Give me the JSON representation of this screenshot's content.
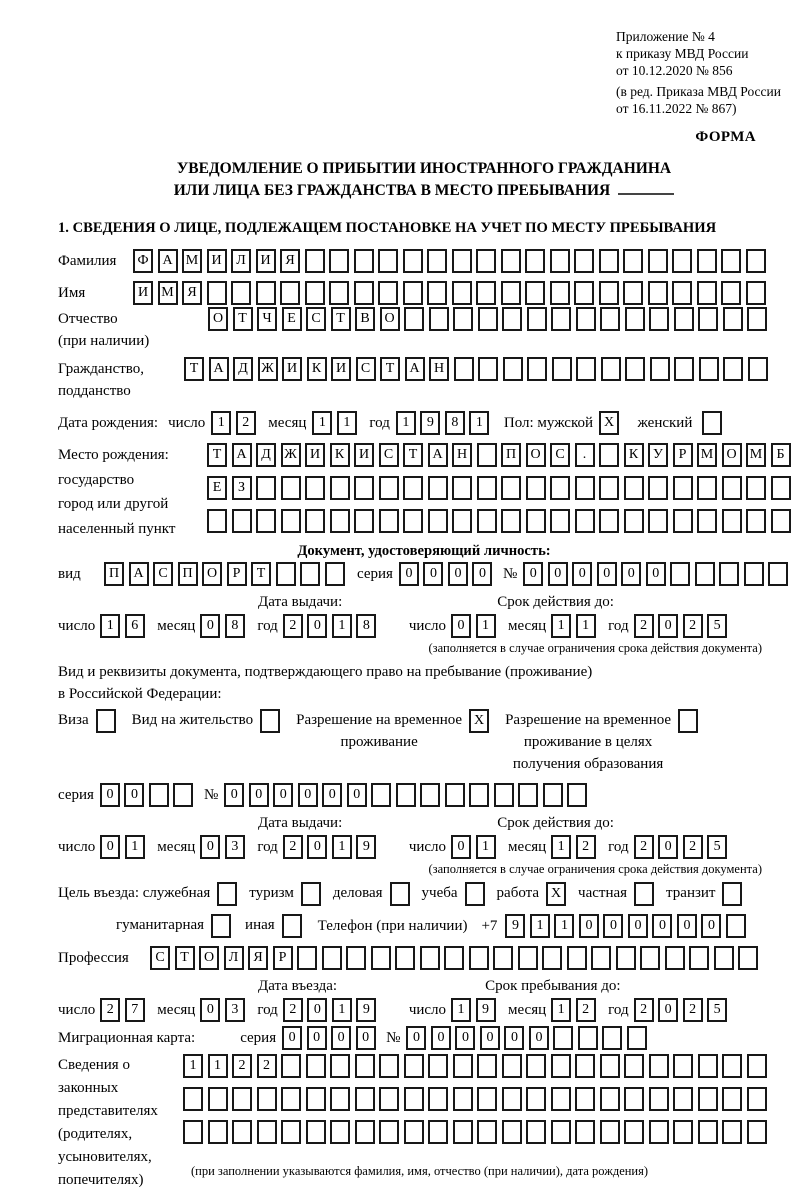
{
  "header": {
    "appendix_lines": [
      "Приложение № 4",
      "к приказу МВД России",
      "от 10.12.2020 № 856"
    ],
    "edition_lines": [
      "(в ред. Приказа МВД России",
      "от 16.11.2022 № 867)"
    ],
    "forma": "ФОРМА"
  },
  "title": {
    "line1": "УВЕДОМЛЕНИЕ О ПРИБЫТИИ ИНОСТРАННОГО ГРАЖДАНИНА",
    "line2": "ИЛИ ЛИЦА БЕЗ ГРАЖДАНСТВА В МЕСТО ПРЕБЫВАНИЯ"
  },
  "section1_heading": "1. СВЕДЕНИЯ О ЛИЦЕ, ПОДЛЕЖАЩЕМ ПОСТАНОВКЕ НА УЧЕТ ПО МЕСТУ ПРЕБЫВАНИЯ",
  "date_labels": {
    "day": "число",
    "month": "месяц",
    "year": "год"
  },
  "person": {
    "surname": {
      "label": "Фамилия",
      "boxes": {
        "chars": "ФАМИЛИЯ",
        "count": 26
      }
    },
    "given_name": {
      "label": "Имя",
      "boxes": {
        "chars": "ИМЯ",
        "count": 26
      }
    },
    "patronymic": {
      "label_line1": "Отчество",
      "label_line2": "(при наличии)",
      "boxes": {
        "chars": "ОТЧЕСТВО",
        "count": 23
      }
    },
    "citizenship": {
      "label_line1": "Гражданство,",
      "label_line2": "подданство",
      "boxes": {
        "chars": "ТАДЖИКИСТАН",
        "count": 24
      }
    },
    "birth_date": {
      "label": "Дата рождения:",
      "d": "12",
      "m": "11",
      "y": "1981"
    },
    "sex": {
      "label_male": "Пол: мужской",
      "male_checked": "X",
      "label_female": "женский",
      "female_checked": ""
    },
    "birth_place": {
      "label_lines": [
        "Место рождения:",
        "государство",
        "город или другой",
        "населенный пункт"
      ],
      "row1": {
        "chars": "ТАДЖИКИСТАН ПОС. КУРМОМБ",
        "count": 24
      },
      "row2": {
        "chars": "ЕЗ",
        "count": 24
      },
      "row3": {
        "chars": "",
        "count": 24
      }
    }
  },
  "id_document": {
    "heading": "Документ, удостоверяющий личность:",
    "kind_label": "вид",
    "kind": {
      "chars": "ПАСПОРТ",
      "count": 10
    },
    "series_label": "серия",
    "series": {
      "chars": "0000",
      "count": 4
    },
    "number_label": "№",
    "number": {
      "chars": "000000",
      "count": 11
    },
    "issue_label": "Дата выдачи:",
    "issue": {
      "d": "16",
      "m": "08",
      "y": "2018"
    },
    "valid_label": "Срок действия до:",
    "valid": {
      "d": "01",
      "m": "11",
      "y": "2025"
    },
    "note": "(заполняется в случае ограничения срока действия документа)"
  },
  "stay_document": {
    "intro_line1": "Вид и реквизиты документа, подтверждающего право на пребывание (проживание)",
    "intro_line2": "в Российской Федерации:",
    "visa": {
      "label": "Виза",
      "checked": ""
    },
    "residence_permit": {
      "label": "Вид на жительство",
      "checked": ""
    },
    "temp_residence": {
      "label_line1": "Разрешение на временное",
      "label_line2": "проживание",
      "checked": "X"
    },
    "temp_residence_edu": {
      "label_line1": "Разрешение на временное",
      "label_line2": "проживание в целях",
      "label_line3": "получения образования",
      "checked": ""
    },
    "series_label": "серия",
    "series": {
      "chars": "00",
      "count": 4
    },
    "number_label": "№",
    "number": {
      "chars": "000000",
      "count": 15
    },
    "issue_label": "Дата выдачи:",
    "issue": {
      "d": "01",
      "m": "03",
      "y": "2019"
    },
    "valid_label": "Срок действия до:",
    "valid": {
      "d": "01",
      "m": "12",
      "y": "2025"
    },
    "note": "(заполняется в случае ограничения срока действия документа)"
  },
  "visit": {
    "purpose_label": "Цель въезда: служебная",
    "purposes_row1": [
      {
        "label": "служебная",
        "checked": ""
      },
      {
        "label": "туризм",
        "checked": ""
      },
      {
        "label": "деловая",
        "checked": ""
      },
      {
        "label": "учеба",
        "checked": ""
      },
      {
        "label": "работа",
        "checked": "X"
      },
      {
        "label": "частная",
        "checked": ""
      },
      {
        "label": "транзит",
        "checked": ""
      }
    ],
    "purposes_row2": [
      {
        "label": "гуманитарная",
        "checked": ""
      },
      {
        "label": "иная",
        "checked": ""
      }
    ],
    "phone_label": "Телефон (при наличии)",
    "phone_prefix": "+7",
    "phone": {
      "chars": "911000000",
      "count": 10
    },
    "profession": {
      "label": "Профессия",
      "boxes": {
        "chars": "СТОЛЯР",
        "count": 25
      }
    },
    "entry_date_label": "Дата въезда:",
    "entry_date": {
      "d": "27",
      "m": "03",
      "y": "2019"
    },
    "stay_until_label": "Срок пребывания до:",
    "stay_until": {
      "d": "19",
      "m": "12",
      "y": "2025"
    },
    "migration_card": {
      "label": "Миграционная карта:",
      "series_label": "серия",
      "series": {
        "chars": "0000",
        "count": 4
      },
      "number_label": "№",
      "number": {
        "chars": "000000",
        "count": 10
      }
    }
  },
  "guardians": {
    "label_lines": [
      "Сведения о",
      "законных",
      "представителях",
      "(родителях,",
      "усыновителях,",
      "попечителях)"
    ],
    "row1": {
      "chars": "1122",
      "count": 24
    },
    "row2": {
      "chars": "",
      "count": 24
    },
    "row3": {
      "chars": "",
      "count": 24
    },
    "note": "(при заполнении указываются фамилия, имя, отчество (при наличии), дата рождения)"
  }
}
